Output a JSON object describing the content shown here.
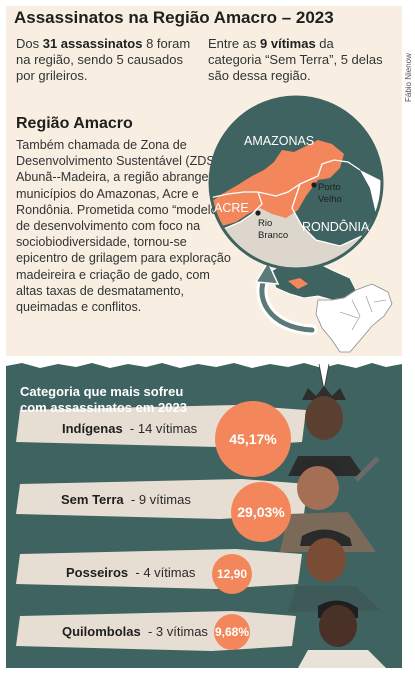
{
  "title": "Assassinatos na Região Amacro – 2023",
  "credit": "Fábio Nienow",
  "stat_left": {
    "pre": "Dos ",
    "bold": "31 assassinatos",
    "rest": " 8 foram na região, sendo 5 causados por grileiros."
  },
  "stat_right": {
    "pre": "Entre as ",
    "bold": "9 vítimas",
    "rest": " da categoria “Sem Terra”, 5 delas são dessa região."
  },
  "region": {
    "heading": "Região Amacro",
    "text": "Também chamada de Zona de Desenvolvimento Sustentável (ZDS) Abunã--Madeira, a região abrange 32 municípios do Amazonas, Acre e Rondônia. Prometida como “modelo” de desenvolvimento com foco na sociobiodiversidade, tornou-se epicentro de grilagem para exploração madeireira e criação de gado, com altas taxas de desmatamento, queimadas e conflitos."
  },
  "map": {
    "labels": {
      "amazonas": "AMAZONAS",
      "acre": "ACRE",
      "rondonia": "RONDÔNIA",
      "porto_velho": "Porto Velho",
      "rio_branco": "Rio Branco"
    },
    "colors": {
      "highlight": "#f3875b",
      "state": "#3f6360",
      "other": "#ffffff",
      "circle_bg": "#dcd6cc"
    }
  },
  "categories_title": "Categoria que mais sofreu com assassinatos em 2023",
  "chart_data": {
    "type": "bar",
    "title": "Categoria que mais sofreu com assassinatos em 2023",
    "categories": [
      "Indígenas",
      "Sem Terra",
      "Posseiros",
      "Quilombolas"
    ],
    "victims": [
      14,
      9,
      4,
      3
    ],
    "victims_text": [
      "- 14 vítimas",
      "- 9 vítimas",
      "- 4 vítimas",
      "- 3 vítimas"
    ],
    "values": [
      45.17,
      29.03,
      12.9,
      9.68
    ],
    "value_labels": [
      "45,17%",
      "29,03%",
      "12,90",
      "9,68%"
    ],
    "color": "#f3875b"
  }
}
